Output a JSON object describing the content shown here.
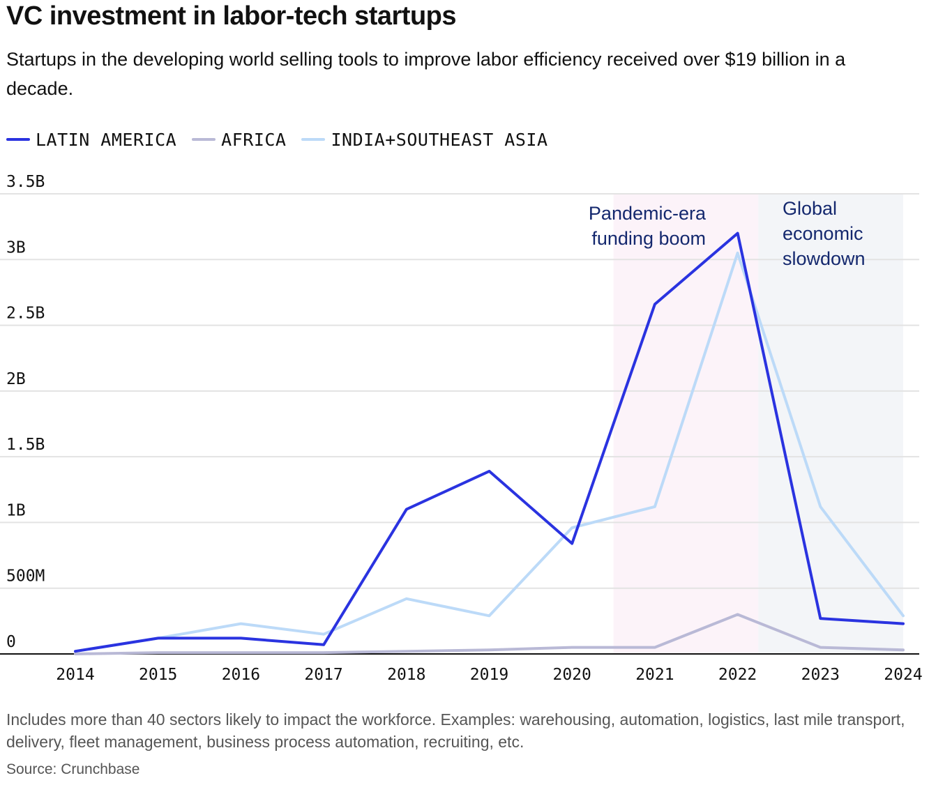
{
  "title": "VC investment in labor-tech startups",
  "subtitle": "Startups in the developing world selling tools to improve labor efficiency received over $19 billion in a decade.",
  "note": "Includes more than 40 sectors likely to impact the workforce. Examples: warehousing, automation, logistics, last mile transport, delivery, fleet management, business process automation, recruiting, etc.",
  "source": "Source: Crunchbase",
  "colors": {
    "latin_america": "#2a33e0",
    "africa": "#b9b9d6",
    "india_sea": "#bcdaf8",
    "boom_band": "#fcf3f9",
    "slowdown_band": "#f3f5f8",
    "annotation_text": "#14286e"
  },
  "chart_data": {
    "type": "line",
    "title": "VC investment in labor-tech startups",
    "xlabel": "",
    "ylabel": "",
    "categories": [
      "2014",
      "2015",
      "2016",
      "2017",
      "2018",
      "2019",
      "2020",
      "2021",
      "2022",
      "2023",
      "2024"
    ],
    "y_ticks": [
      0,
      0.5,
      1,
      1.5,
      2,
      2.5,
      3,
      3.5
    ],
    "y_tick_labels": [
      "0",
      "500M",
      "1B",
      "1.5B",
      "2B",
      "2.5B",
      "3B",
      "3.5B"
    ],
    "ylim": [
      0,
      3.5
    ],
    "y_unit": "billion USD",
    "grid": true,
    "legend_position": "top-left",
    "series": [
      {
        "name": "INDIA+SOUTHEAST ASIA",
        "color_key": "india_sea",
        "values": [
          0.02,
          0.12,
          0.23,
          0.15,
          0.42,
          0.29,
          0.96,
          1.12,
          3.05,
          1.12,
          0.29
        ]
      },
      {
        "name": "AFRICA",
        "color_key": "africa",
        "values": [
          0.0,
          0.01,
          0.01,
          0.01,
          0.02,
          0.03,
          0.05,
          0.05,
          0.3,
          0.05,
          0.03
        ]
      },
      {
        "name": "LATIN AMERICA",
        "color_key": "latin_america",
        "values": [
          0.02,
          0.12,
          0.12,
          0.07,
          1.1,
          1.39,
          0.84,
          2.66,
          3.2,
          0.27,
          0.23
        ]
      }
    ],
    "legend": [
      "LATIN AMERICA",
      "AFRICA",
      "INDIA+SOUTHEAST ASIA"
    ],
    "annotations": [
      {
        "name": "pandemic",
        "from": 2020.5,
        "to": 2022.25,
        "color_key": "boom_band",
        "lines": [
          "Pandemic-era",
          "funding boom"
        ]
      },
      {
        "name": "slowdown",
        "from": 2022.25,
        "to": 2024,
        "color_key": "slowdown_band",
        "lines": [
          "Global",
          "economic",
          "slowdown"
        ]
      }
    ]
  }
}
